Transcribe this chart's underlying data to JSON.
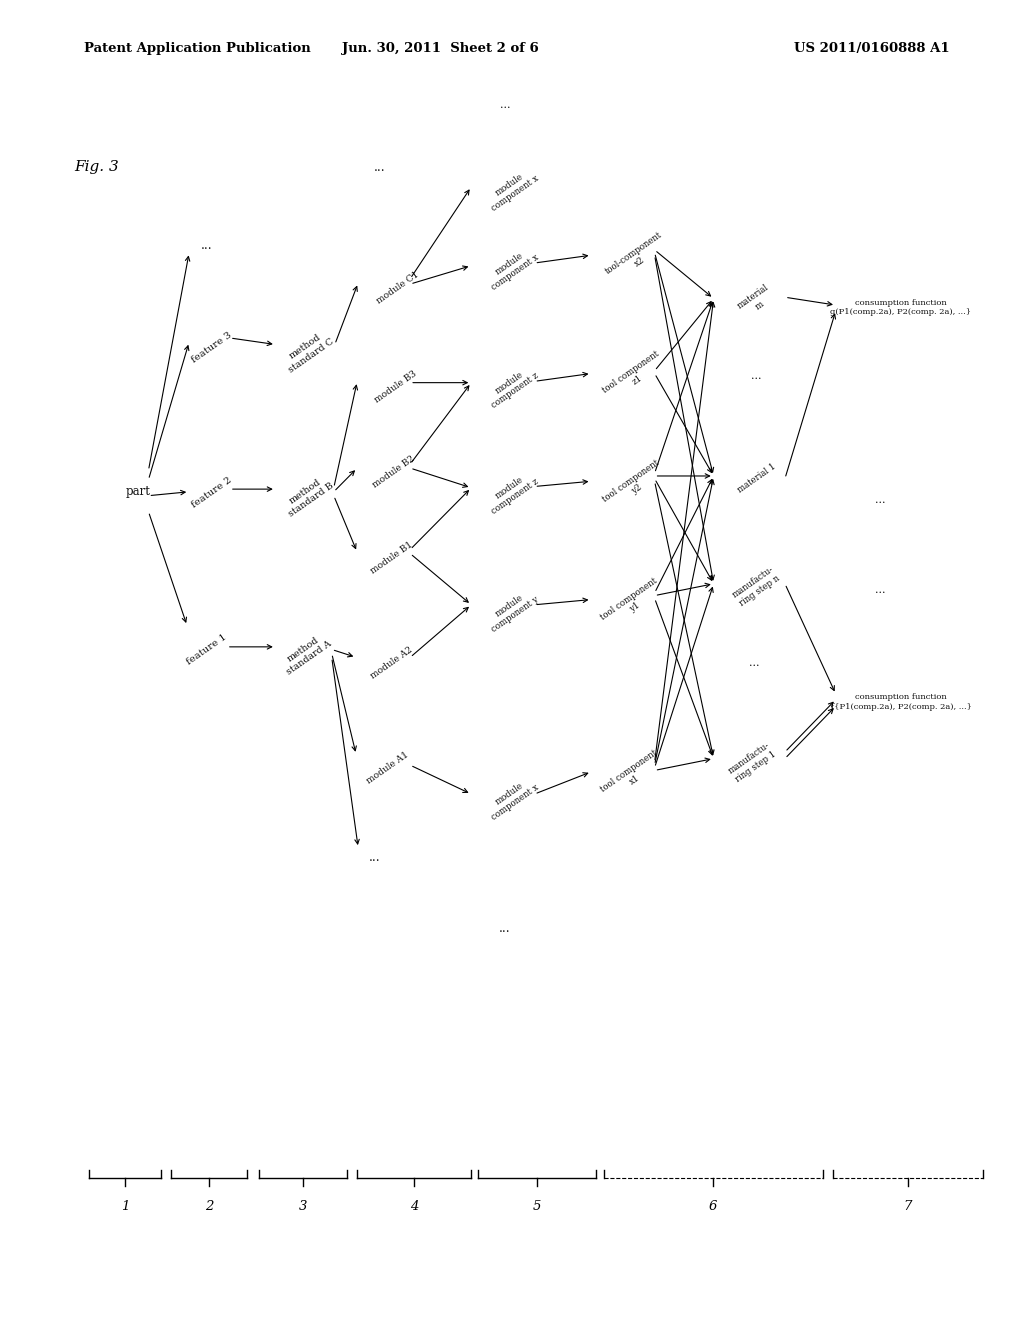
{
  "bg_color": "#ffffff",
  "text_color": "#000000",
  "header_left": "Patent Application Publication",
  "header_mid": "Jun. 30, 2011  Sheet 2 of 6",
  "header_right": "US 2011/0160888 A1",
  "fig_label": "Fig. 3"
}
